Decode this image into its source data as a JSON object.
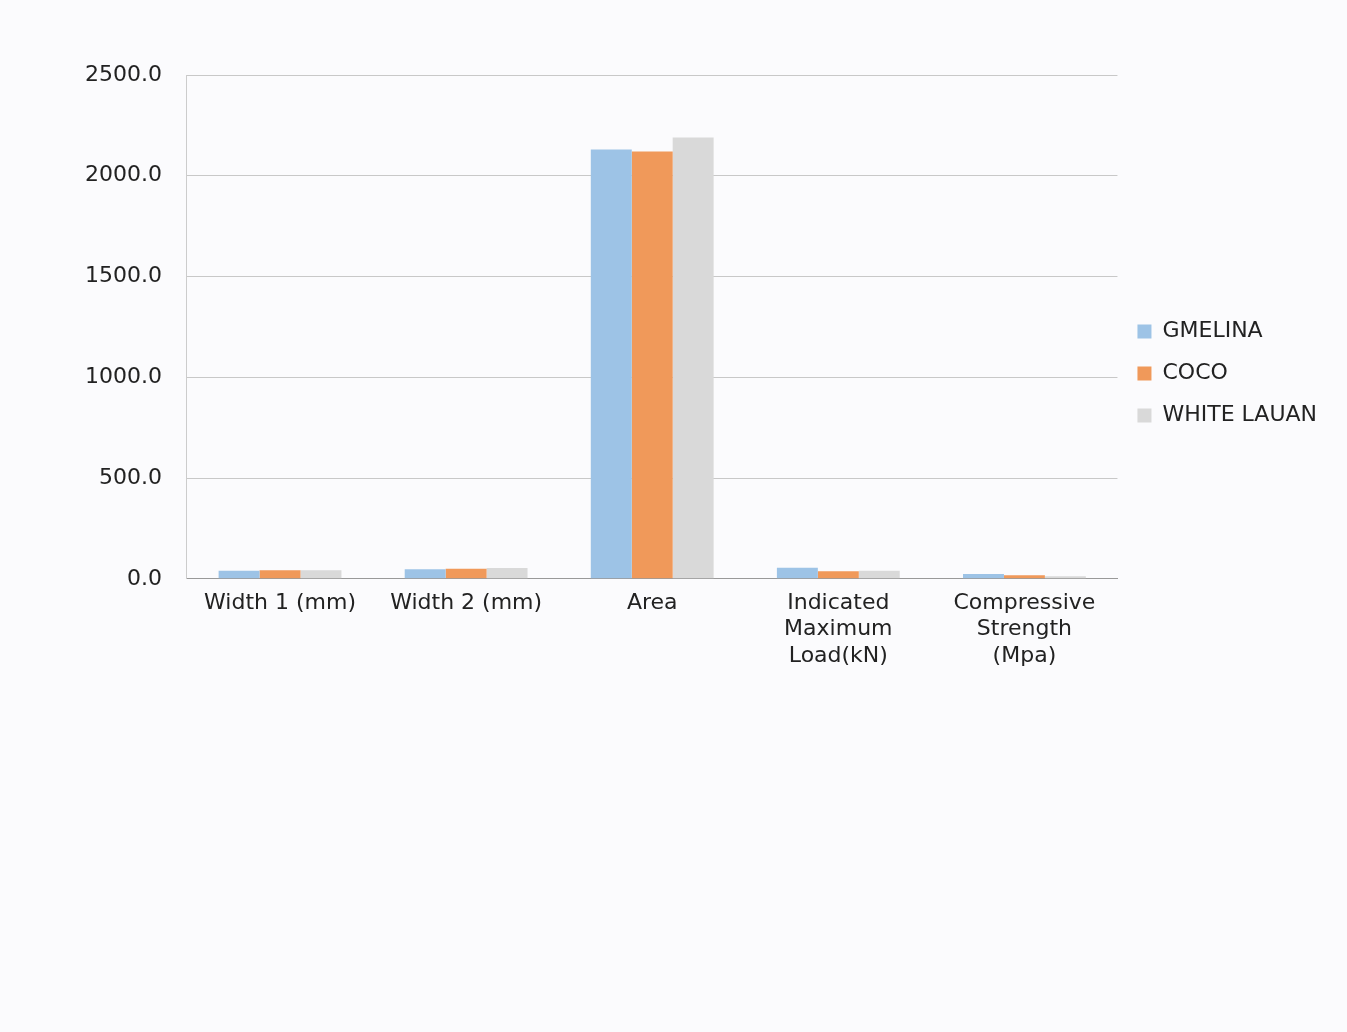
{
  "chart_data": {
    "type": "bar",
    "categories": [
      "Width 1 (mm)",
      "Width 2 (mm)",
      "Area",
      "Indicated Maximum Load(kN)",
      "Compressive Strength (Mpa)"
    ],
    "series": [
      {
        "name": "GMELINA",
        "color": "#9dc3e6",
        "values": [
          40,
          48,
          2130,
          55,
          24
        ]
      },
      {
        "name": "COCO",
        "color": "#f0995a",
        "values": [
          43,
          50,
          2120,
          37,
          18
        ]
      },
      {
        "name": "WHITE LAUAN",
        "color": "#d9d9d9",
        "values": [
          42,
          53,
          2190,
          40,
          13
        ]
      }
    ],
    "ylim": [
      0,
      2500
    ],
    "yticks": [
      {
        "value": 0,
        "label": "0.0"
      },
      {
        "value": 500,
        "label": "500.0"
      },
      {
        "value": 1000,
        "label": "1000.0"
      },
      {
        "value": 1500,
        "label": "1500.0"
      },
      {
        "value": 2000,
        "label": "2000.0"
      },
      {
        "value": 2500,
        "label": "2500.0"
      }
    ],
    "grid": "y",
    "legend": "right"
  }
}
